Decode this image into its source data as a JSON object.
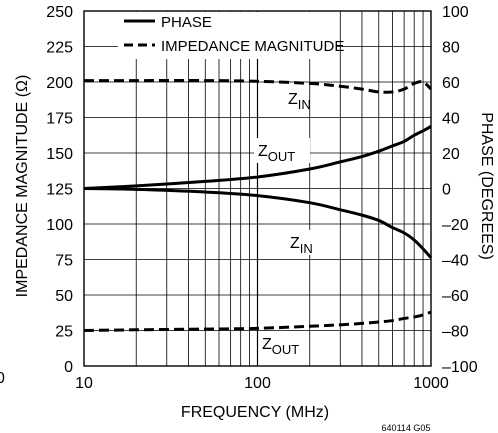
{
  "chart_data": {
    "type": "line",
    "xlabel": "FREQUENCY (MHz)",
    "ylabel_left": "IMPEDANCE MAGNITUDE (Ω)",
    "ylabel_right": "PHASE (DEGREES)",
    "x_scale": "log",
    "xlim": [
      10,
      1000
    ],
    "ylim_left": [
      0,
      250
    ],
    "ylim_right": [
      -100,
      100
    ],
    "x_ticks": [
      "10",
      "100",
      "1000"
    ],
    "y_ticks_left": [
      "0",
      "25",
      "50",
      "75",
      "100",
      "125",
      "150",
      "175",
      "200",
      "225",
      "250"
    ],
    "y_ticks_right": [
      "–100",
      "–80",
      "–60",
      "–40",
      "–20",
      "0",
      "20",
      "40",
      "60",
      "80",
      "100"
    ],
    "grid": true,
    "legend_position": "top-left",
    "legend": [
      {
        "label": "PHASE",
        "style": "solid"
      },
      {
        "label": "IMPEDANCE MAGNITUDE",
        "style": "dashed"
      }
    ],
    "annotations": [
      {
        "text": "Z",
        "sub": "IN",
        "near": "zin-magnitude"
      },
      {
        "text": "Z",
        "sub": "OUT",
        "near": "zout-phase"
      },
      {
        "text": "Z",
        "sub": "IN",
        "near": "zin-phase"
      },
      {
        "text": "Z",
        "sub": "OUT",
        "near": "zout-magnitude"
      }
    ],
    "series": [
      {
        "id": "zin-magnitude",
        "kind": "magnitude",
        "axis": "left",
        "style": "dashed",
        "x": [
          10,
          20,
          50,
          100,
          200,
          300,
          400,
          500,
          600,
          700,
          800,
          900,
          1000
        ],
        "y": [
          201,
          201,
          201,
          200.5,
          199,
          197,
          195,
          193,
          193,
          195,
          199,
          200,
          195
        ]
      },
      {
        "id": "zout-phase",
        "kind": "phase",
        "axis": "right",
        "style": "solid",
        "x": [
          10,
          20,
          50,
          100,
          200,
          300,
          400,
          500,
          600,
          700,
          800,
          900,
          1000
        ],
        "y": [
          0,
          1.5,
          4,
          6.5,
          11,
          15,
          18,
          21,
          24,
          26.5,
          30,
          32.5,
          35
        ]
      },
      {
        "id": "zin-phase",
        "kind": "phase",
        "axis": "right",
        "style": "solid",
        "x": [
          10,
          20,
          50,
          100,
          200,
          300,
          400,
          500,
          600,
          700,
          800,
          900,
          1000
        ],
        "y": [
          0,
          -0.5,
          -2,
          -4,
          -8,
          -12,
          -15,
          -18,
          -22,
          -25,
          -29,
          -34,
          -39
        ]
      },
      {
        "id": "zout-magnitude",
        "kind": "magnitude",
        "axis": "left",
        "style": "dashed",
        "x": [
          10,
          20,
          50,
          100,
          200,
          300,
          400,
          500,
          600,
          700,
          800,
          900,
          1000
        ],
        "y": [
          25,
          25.5,
          26,
          26.5,
          28,
          29,
          30,
          31,
          32,
          33.5,
          34.5,
          36,
          38
        ]
      }
    ],
    "figure_code": "640114 G05",
    "left_edge_fragment": "0"
  }
}
